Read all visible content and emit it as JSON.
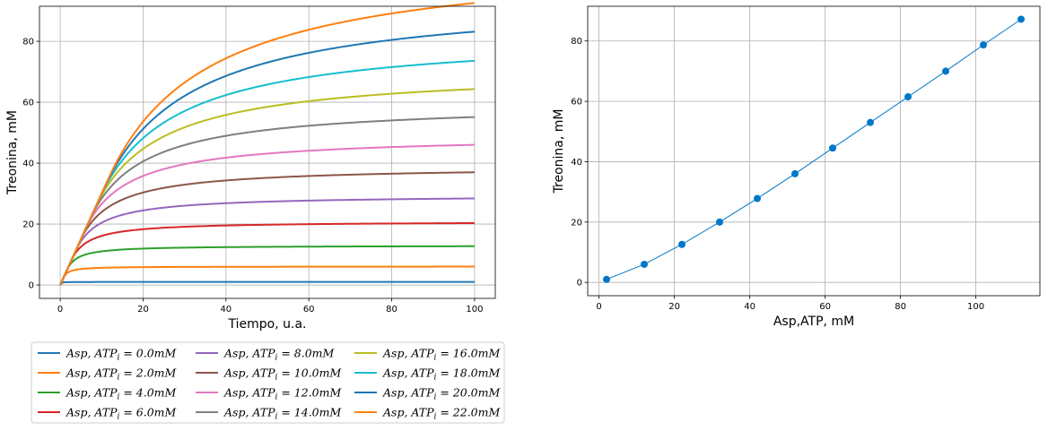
{
  "chart_data": [
    {
      "type": "line",
      "xlabel": "Tiempo, u.a.",
      "ylabel": "Treonina, mM",
      "xlim": [
        -5,
        105
      ],
      "ylim": [
        -4.4,
        91.5
      ],
      "xticks": [
        0,
        20,
        40,
        60,
        80,
        100
      ],
      "yticks": [
        0,
        20,
        40,
        60,
        80
      ],
      "grid": true,
      "legend_position": "below",
      "series": [
        {
          "name": "Asp, ATP_i = 0.0mM",
          "label_prefix": "Asp,  ATP",
          "label_sub": "i",
          "label_value": " = 0.0mM",
          "color": "#1f77b4",
          "final": 1.0
        },
        {
          "name": "Asp, ATP_i = 2.0mM",
          "label_prefix": "Asp,  ATP",
          "label_sub": "i",
          "label_value": " = 2.0mM",
          "color": "#ff7f0e",
          "final": 6.0
        },
        {
          "name": "Asp, ATP_i = 4.0mM",
          "label_prefix": "Asp,  ATP",
          "label_sub": "i",
          "label_value": " = 4.0mM",
          "color": "#2ca02c",
          "final": 12.6
        },
        {
          "name": "Asp, ATP_i = 6.0mM",
          "label_prefix": "Asp,  ATP",
          "label_sub": "i",
          "label_value": " = 6.0mM",
          "color": "#d62728",
          "final": 20.0
        },
        {
          "name": "Asp, ATP_i = 8.0mM",
          "label_prefix": "Asp,  ATP",
          "label_sub": "i",
          "label_value": " = 8.0mM",
          "color": "#9467bd",
          "final": 27.8
        },
        {
          "name": "Asp, ATP_i = 10.0mM",
          "label_prefix": "Asp,  ATP",
          "label_sub": "i",
          "label_value": " = 10.0mM",
          "color": "#8c564b",
          "final": 36.0
        },
        {
          "name": "Asp, ATP_i = 12.0mM",
          "label_prefix": "Asp,  ATP",
          "label_sub": "i",
          "label_value": " = 12.0mM",
          "color": "#e377c2",
          "final": 44.5
        },
        {
          "name": "Asp, ATP_i = 14.0mM",
          "label_prefix": "Asp,  ATP",
          "label_sub": "i",
          "label_value": " = 14.0mM",
          "color": "#7f7f7f",
          "final": 53.0
        },
        {
          "name": "Asp, ATP_i = 16.0mM",
          "label_prefix": "Asp,  ATP",
          "label_sub": "i",
          "label_value": " = 16.0mM",
          "color": "#bcbd22",
          "final": 61.5
        },
        {
          "name": "Asp, ATP_i = 18.0mM",
          "label_prefix": "Asp,  ATP",
          "label_sub": "i",
          "label_value": " = 18.0mM",
          "color": "#17becf",
          "final": 70.0
        },
        {
          "name": "Asp, ATP_i = 20.0mM",
          "label_prefix": "Asp,  ATP",
          "label_sub": "i",
          "label_value": " = 20.0mM",
          "color": "#1f77b4",
          "final": 78.7
        },
        {
          "name": "Asp, ATP_i = 22.0mM",
          "label_prefix": "Asp,  ATP",
          "label_sub": "i",
          "label_value": " = 22.0mM",
          "color": "#ff7f0e",
          "final": 87.2
        }
      ]
    },
    {
      "type": "scatter",
      "xlabel": "Asp,ATP, mM",
      "ylabel": "Treonina, mM",
      "xlim": [
        -3,
        117
      ],
      "ylim": [
        -4.4,
        91.5
      ],
      "xticks": [
        0,
        20,
        40,
        60,
        80,
        100
      ],
      "yticks": [
        0,
        20,
        40,
        60,
        80
      ],
      "grid": true,
      "marker_color": "#0077c8",
      "x": [
        2,
        12,
        22,
        32,
        42,
        52,
        62,
        72,
        82,
        92,
        102,
        112
      ],
      "y": [
        1.0,
        6.0,
        12.6,
        20.0,
        27.8,
        36.0,
        44.5,
        53.0,
        61.5,
        70.0,
        78.7,
        87.2
      ]
    }
  ]
}
